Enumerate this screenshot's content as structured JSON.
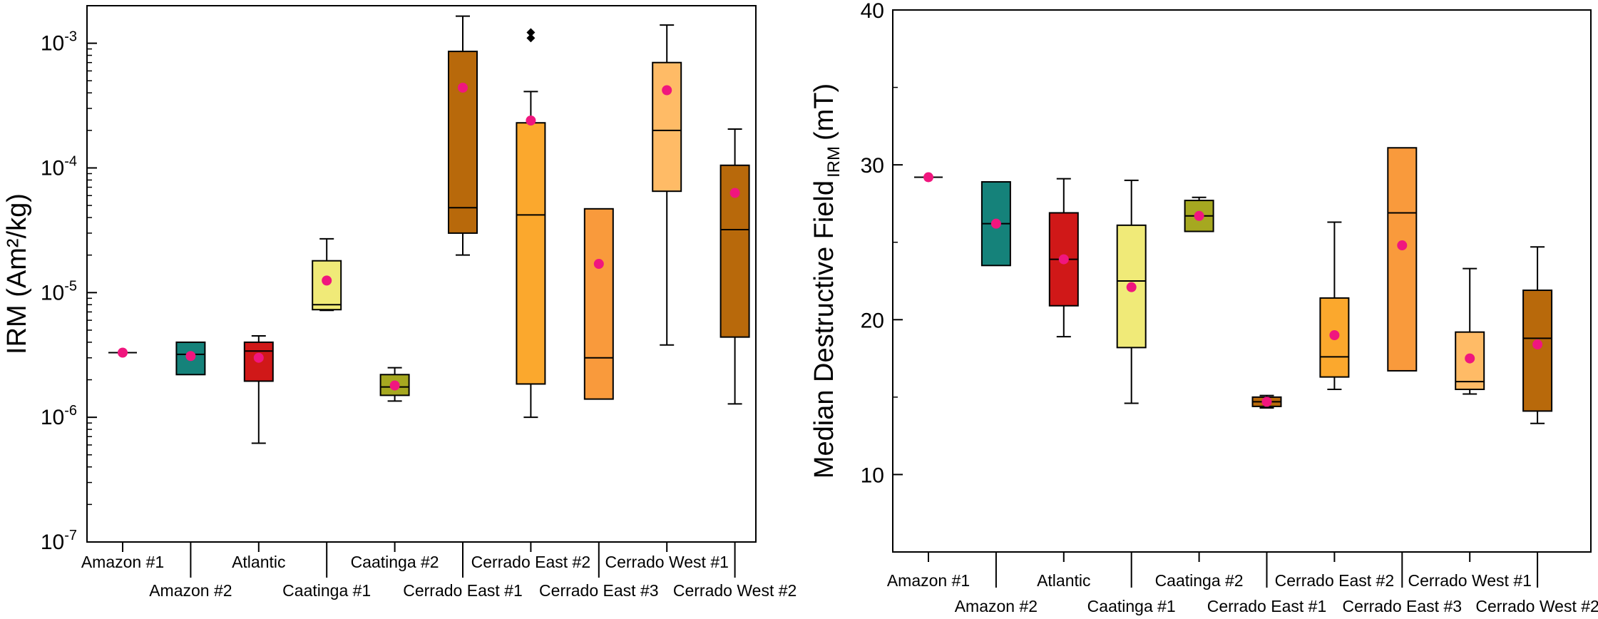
{
  "chart_data": [
    {
      "type": "box",
      "ylabel_main": "IRM (Am²/kg)",
      "yscale": "log",
      "ylim": [
        1e-07,
        0.002
      ],
      "yticks": [
        {
          "exp": "-7",
          "value": 1e-07
        },
        {
          "exp": "-6",
          "value": 1e-06
        },
        {
          "exp": "-5",
          "value": 1e-05
        },
        {
          "exp": "-4",
          "value": 0.0001
        },
        {
          "exp": "-3",
          "value": 0.001
        }
      ],
      "tick_base": "10",
      "categories": [
        "Amazon #1",
        "Amazon #2",
        "Atlantic",
        "Caatinga #1",
        "Caatinga #2",
        "Cerrado East #1",
        "Cerrado East #2",
        "Cerrado East #3",
        "Cerrado West #1",
        "Cerrado West #2"
      ],
      "boxes": [
        {
          "label": "Amazon #1",
          "color": "#333333",
          "whisker_low": 3.3e-06,
          "q1": 3.3e-06,
          "median": 3.3e-06,
          "q3": 3.3e-06,
          "whisker_high": 3.3e-06,
          "mean": 3.3e-06,
          "outliers": []
        },
        {
          "label": "Amazon #2",
          "color": "#15827a",
          "whisker_low": 2.2e-06,
          "q1": 2.2e-06,
          "median": 3.2e-06,
          "q3": 4e-06,
          "whisker_high": 4e-06,
          "mean": 3.1e-06,
          "outliers": []
        },
        {
          "label": "Atlantic",
          "color": "#d01818",
          "whisker_low": 6.2e-07,
          "q1": 1.95e-06,
          "median": 3.4e-06,
          "q3": 4e-06,
          "whisker_high": 4.5e-06,
          "mean": 3e-06,
          "outliers": []
        },
        {
          "label": "Caatinga #1",
          "color": "#f0ea78",
          "whisker_low": 7.2e-06,
          "q1": 7.3e-06,
          "median": 8e-06,
          "q3": 1.8e-05,
          "whisker_high": 2.7e-05,
          "mean": 1.25e-05,
          "outliers": []
        },
        {
          "label": "Caatinga #2",
          "color": "#a6a820",
          "whisker_low": 1.35e-06,
          "q1": 1.5e-06,
          "median": 1.75e-06,
          "q3": 2.2e-06,
          "whisker_high": 2.5e-06,
          "mean": 1.8e-06,
          "outliers": []
        },
        {
          "label": "Cerrado East #1",
          "color": "#b8690b",
          "whisker_low": 2e-05,
          "q1": 3e-05,
          "median": 4.8e-05,
          "q3": 0.00086,
          "whisker_high": 0.00165,
          "mean": 0.00044,
          "outliers": []
        },
        {
          "label": "Cerrado East #2",
          "color": "#fba82d",
          "whisker_low": 1e-06,
          "q1": 1.85e-06,
          "median": 4.2e-05,
          "q3": 0.00023,
          "whisker_high": 0.00041,
          "mean": 0.00024,
          "outliers": [
            0.0011,
            0.00122
          ]
        },
        {
          "label": "Cerrado East #3",
          "color": "#f99a3c",
          "whisker_low": 1.4e-06,
          "q1": 1.4e-06,
          "median": 3e-06,
          "q3": 4.7e-05,
          "whisker_high": 4.7e-05,
          "mean": 1.7e-05,
          "outliers": []
        },
        {
          "label": "Cerrado West #1",
          "color": "#ffbb66",
          "whisker_low": 3.8e-06,
          "q1": 6.5e-05,
          "median": 0.0002,
          "q3": 0.0007,
          "whisker_high": 0.0014,
          "mean": 0.00042,
          "outliers": []
        },
        {
          "label": "Cerrado West #2",
          "color": "#b8690b",
          "whisker_low": 1.28e-06,
          "q1": 4.4e-06,
          "median": 3.2e-05,
          "q3": 0.000105,
          "whisker_high": 0.000205,
          "mean": 6.3e-05,
          "outliers": []
        }
      ]
    },
    {
      "type": "box",
      "ylabel_main": "Median Destructive Field",
      "ylabel_sub": "IRM",
      "ylabel_unit": "(mT)",
      "yscale": "linear",
      "ylim": [
        5,
        40
      ],
      "yticks": [
        10,
        20,
        30,
        40
      ],
      "categories": [
        "Amazon #1",
        "Amazon #2",
        "Atlantic",
        "Caatinga #1",
        "Caatinga #2",
        "Cerrado East #1",
        "Cerrado East #2",
        "Cerrado East #3",
        "Cerrado West #1",
        "Cerrado West #2"
      ],
      "boxes": [
        {
          "label": "Amazon #1",
          "color": "#333333",
          "whisker_low": 29.2,
          "q1": 29.2,
          "median": 29.2,
          "q3": 29.2,
          "whisker_high": 29.2,
          "mean": 29.2,
          "outliers": []
        },
        {
          "label": "Amazon #2",
          "color": "#15827a",
          "whisker_low": 23.5,
          "q1": 23.5,
          "median": 26.2,
          "q3": 28.9,
          "whisker_high": 28.9,
          "mean": 26.2,
          "outliers": []
        },
        {
          "label": "Atlantic",
          "color": "#d01818",
          "whisker_low": 18.9,
          "q1": 20.9,
          "median": 23.9,
          "q3": 26.9,
          "whisker_high": 29.1,
          "mean": 23.9,
          "outliers": []
        },
        {
          "label": "Caatinga #1",
          "color": "#f0ea78",
          "whisker_low": 14.6,
          "q1": 18.2,
          "median": 22.5,
          "q3": 26.1,
          "whisker_high": 29.0,
          "mean": 22.1,
          "outliers": []
        },
        {
          "label": "Caatinga #2",
          "color": "#a6a820",
          "whisker_low": 25.7,
          "q1": 25.7,
          "median": 26.7,
          "q3": 27.7,
          "whisker_high": 27.9,
          "mean": 26.7,
          "outliers": []
        },
        {
          "label": "Cerrado East #1",
          "color": "#b8690b",
          "whisker_low": 14.3,
          "q1": 14.4,
          "median": 14.7,
          "q3": 15.0,
          "whisker_high": 15.1,
          "mean": 14.7,
          "outliers": []
        },
        {
          "label": "Cerrado East #2",
          "color": "#fba82d",
          "whisker_low": 15.5,
          "q1": 16.3,
          "median": 17.6,
          "q3": 21.4,
          "whisker_high": 26.3,
          "mean": 19.0,
          "outliers": []
        },
        {
          "label": "Cerrado East #3",
          "color": "#f99a3c",
          "whisker_low": 16.7,
          "q1": 16.7,
          "median": 26.9,
          "q3": 31.1,
          "whisker_high": 31.1,
          "mean": 24.8,
          "outliers": []
        },
        {
          "label": "Cerrado West #1",
          "color": "#ffbb66",
          "whisker_low": 15.2,
          "q1": 15.5,
          "median": 16.0,
          "q3": 19.2,
          "whisker_high": 23.3,
          "mean": 17.5,
          "outliers": []
        },
        {
          "label": "Cerrado West #2",
          "color": "#b8690b",
          "whisker_low": 13.3,
          "q1": 14.1,
          "median": 18.8,
          "q3": 21.9,
          "whisker_high": 24.7,
          "mean": 18.4,
          "outliers": []
        }
      ]
    }
  ]
}
